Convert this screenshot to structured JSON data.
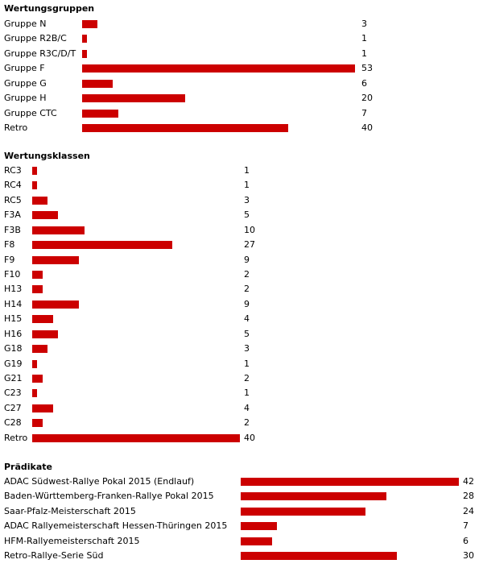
{
  "chart_data": [
    {
      "type": "bar",
      "orientation": "horizontal",
      "title": "Wertungsgruppen",
      "categories": [
        "Gruppe N",
        "Gruppe R2B/C",
        "Gruppe R3C/D/T",
        "Gruppe F",
        "Gruppe G",
        "Gruppe H",
        "Gruppe CTC",
        "Retro"
      ],
      "values": [
        3,
        1,
        1,
        53,
        6,
        20,
        7,
        40
      ],
      "bar_color": "#cc0000"
    },
    {
      "type": "bar",
      "orientation": "horizontal",
      "title": "Wertungsklassen",
      "categories": [
        "RC3",
        "RC4",
        "RC5",
        "F3A",
        "F3B",
        "F8",
        "F9",
        "F10",
        "H13",
        "H14",
        "H15",
        "H16",
        "G18",
        "G19",
        "G21",
        "C23",
        "C27",
        "C28",
        "Retro"
      ],
      "values": [
        1,
        1,
        3,
        5,
        10,
        27,
        9,
        2,
        2,
        9,
        4,
        5,
        3,
        1,
        2,
        1,
        4,
        2,
        40
      ],
      "bar_color": "#cc0000"
    },
    {
      "type": "bar",
      "orientation": "horizontal",
      "title": "Prädikate",
      "categories": [
        "ADAC Südwest-Rallye Pokal 2015 (Endlauf)",
        "Baden-Württemberg-Franken-Rallye Pokal 2015",
        "Saar-Pfalz-Meisterschaft 2015",
        "ADAC Rallyemeisterschaft Hessen-Thüringen 2015",
        "HFM-Rallyemeisterschaft 2015",
        "Retro-Rallye-Serie Süd"
      ],
      "values": [
        42,
        28,
        24,
        7,
        6,
        30
      ],
      "bar_color": "#cc0000"
    }
  ]
}
